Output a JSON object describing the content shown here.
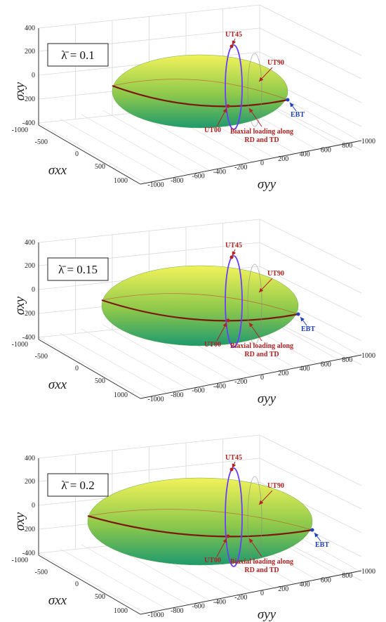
{
  "chart_data": [
    {
      "type": "surface3d",
      "lambda_label": "λ̄ = 0.1",
      "zlabel": "σxy",
      "xlabel": "σxx",
      "ylabel": "σyy",
      "z_ticks": [
        "400",
        "200",
        "0",
        "-200",
        "-400"
      ],
      "x_ticks": [
        "-1000",
        "-500",
        "0",
        "500",
        "1000"
      ],
      "y_ticks": [
        "-1000",
        "-800",
        "-600",
        "-400",
        "-200",
        "0",
        "200",
        "400",
        "600",
        "800",
        "1000"
      ],
      "annotations": {
        "ut45": "UT45",
        "ut90": "UT90",
        "ebt": "EBT",
        "ut00": "UT00",
        "biaxial_1": "Biaxial loading along",
        "biaxial_2": "RD and TD"
      }
    },
    {
      "type": "surface3d",
      "lambda_label": "λ̄ = 0.15",
      "zlabel": "σxy",
      "xlabel": "σxx",
      "ylabel": "σyy",
      "z_ticks": [
        "400",
        "200",
        "0",
        "-200",
        "-400"
      ],
      "x_ticks": [
        "-1000",
        "-500",
        "0",
        "500",
        "1000"
      ],
      "y_ticks": [
        "-1000",
        "-800",
        "-600",
        "-400",
        "-200",
        "0",
        "200",
        "400",
        "600",
        "800",
        "1000"
      ],
      "annotations": {
        "ut45": "UT45",
        "ut90": "UT90",
        "ebt": "EBT",
        "ut00": "UT00",
        "biaxial_1": "Biaxial loading along",
        "biaxial_2": "RD and TD"
      }
    },
    {
      "type": "surface3d",
      "lambda_label": "λ̄ = 0.2",
      "zlabel": "σxy",
      "xlabel": "σxx",
      "ylabel": "σyy",
      "z_ticks": [
        "400",
        "200",
        "0",
        "-200",
        "-400"
      ],
      "x_ticks": [
        "-1000",
        "-500",
        "0",
        "500",
        "1000"
      ],
      "y_ticks": [
        "-1000",
        "-800",
        "-600",
        "-400",
        "-200",
        "0",
        "200",
        "400",
        "600",
        "800",
        "1000"
      ],
      "annotations": {
        "ut45": "UT45",
        "ut90": "UT90",
        "ebt": "EBT",
        "ut00": "UT00",
        "biaxial_1": "Biaxial loading along",
        "biaxial_2": "RD and TD"
      }
    }
  ],
  "colors": {
    "surface_top": "#f2f25a",
    "surface_mid": "#8cc84b",
    "surface_bottom": "#1e9a6e",
    "equator": "#7a1a0a",
    "shear_loop": "#6a3cff",
    "annotation": "#b22222",
    "ebt": "#1f3fbf",
    "grid": "#d9d9d9",
    "axis": "#333333"
  }
}
